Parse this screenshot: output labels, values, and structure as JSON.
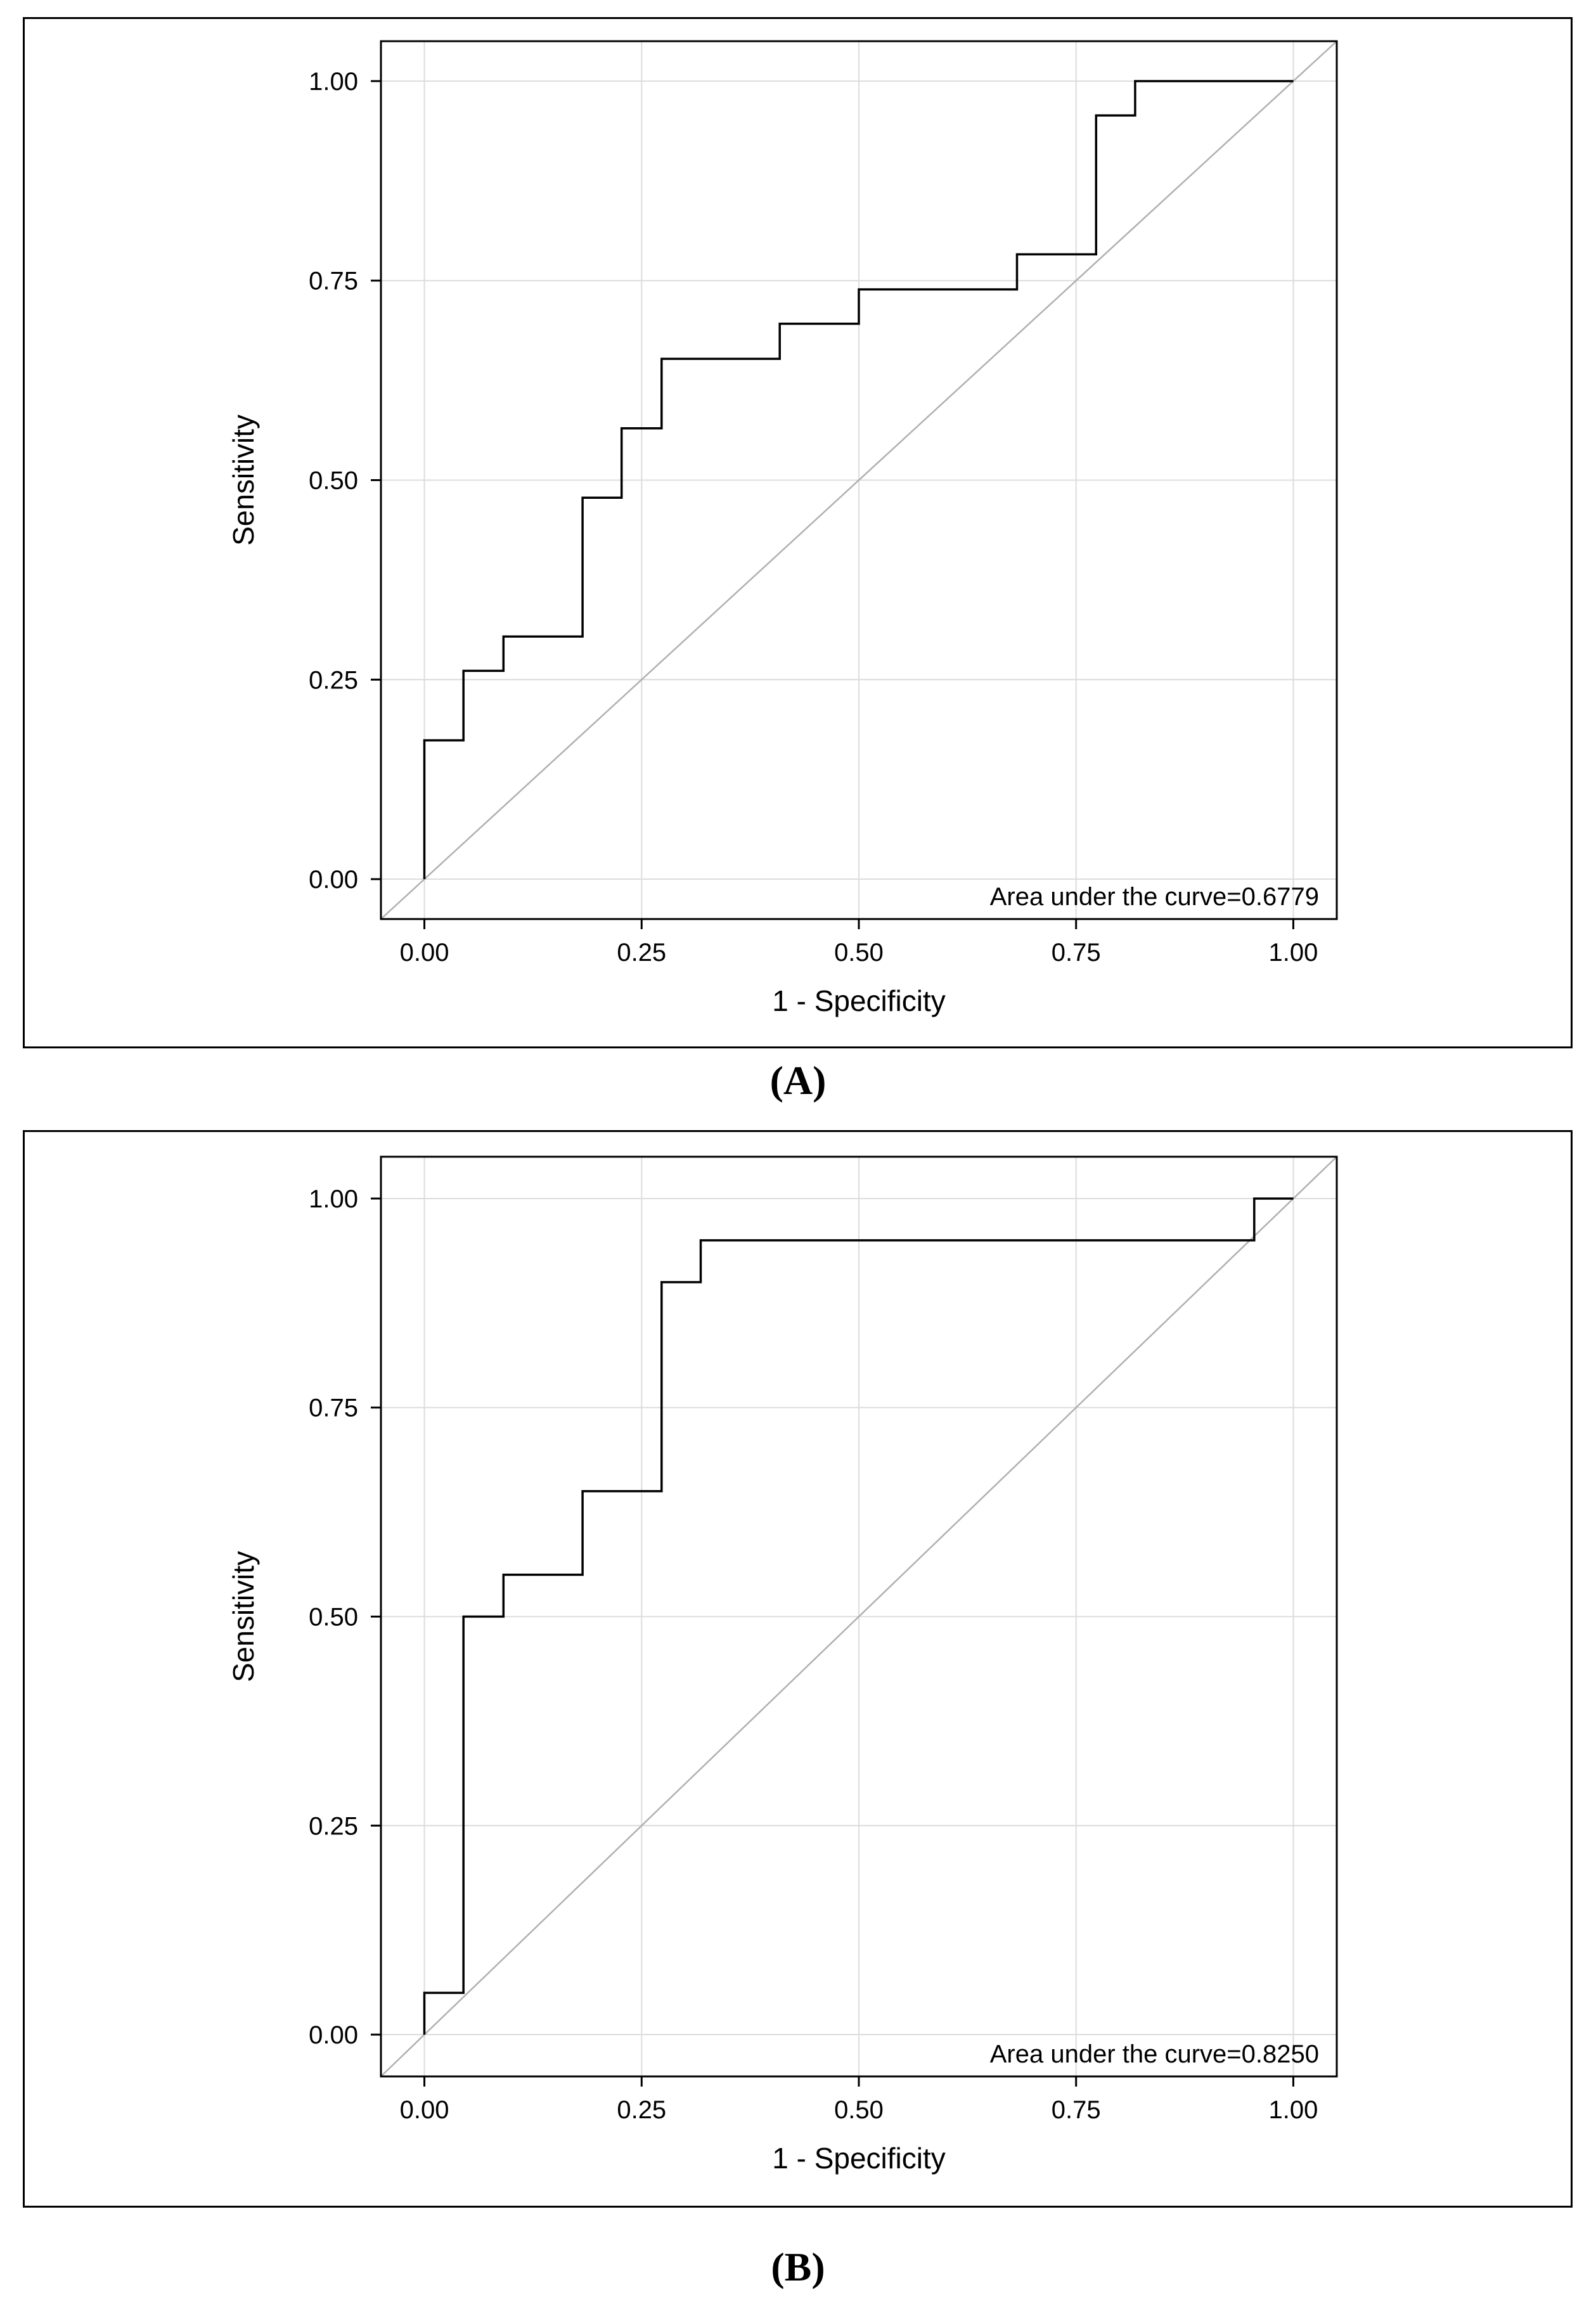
{
  "chart_data": [
    {
      "type": "line",
      "panel_label": "(A)",
      "xlabel": "1 - Specificity",
      "ylabel": "Sensitivity",
      "xlim": [
        -0.05,
        1.05
      ],
      "ylim": [
        -0.05,
        1.05
      ],
      "xticks": [
        "0.00",
        "0.25",
        "0.50",
        "0.75",
        "1.00"
      ],
      "yticks": [
        "0.00",
        "0.25",
        "0.50",
        "0.75",
        "1.00"
      ],
      "grid": true,
      "annotation": "Area under the curve=0.6779",
      "series": [
        {
          "name": "ROC curve",
          "x": [
            0,
            0,
            0.045,
            0.045,
            0.091,
            0.091,
            0.182,
            0.182,
            0.227,
            0.227,
            0.273,
            0.273,
            0.409,
            0.409,
            0.5,
            0.5,
            0.682,
            0.682,
            0.773,
            0.773,
            0.818,
            0.818,
            1
          ],
          "y": [
            0,
            0.174,
            0.174,
            0.261,
            0.261,
            0.304,
            0.304,
            0.478,
            0.478,
            0.565,
            0.565,
            0.652,
            0.652,
            0.696,
            0.696,
            0.739,
            0.739,
            0.783,
            0.783,
            0.957,
            0.957,
            1,
            1
          ]
        },
        {
          "name": "Reference line",
          "x": [
            -0.05,
            1.05
          ],
          "y": [
            -0.05,
            1.05
          ]
        }
      ]
    },
    {
      "type": "line",
      "panel_label": "(B)",
      "xlabel": "1 - Specificity",
      "ylabel": "Sensitivity",
      "xlim": [
        -0.05,
        1.05
      ],
      "ylim": [
        -0.05,
        1.05
      ],
      "xticks": [
        "0.00",
        "0.25",
        "0.50",
        "0.75",
        "1.00"
      ],
      "yticks": [
        "0.00",
        "0.25",
        "0.50",
        "0.75",
        "1.00"
      ],
      "grid": true,
      "annotation": "Area under the curve=0.8250",
      "series": [
        {
          "name": "ROC curve",
          "x": [
            0,
            0,
            0.045,
            0.045,
            0.091,
            0.091,
            0.182,
            0.182,
            0.273,
            0.273,
            0.318,
            0.318,
            0.955,
            0.955,
            1
          ],
          "y": [
            0,
            0.05,
            0.05,
            0.5,
            0.5,
            0.55,
            0.55,
            0.65,
            0.65,
            0.9,
            0.9,
            0.95,
            0.95,
            1,
            1
          ]
        },
        {
          "name": "Reference line",
          "x": [
            -0.05,
            1.05
          ],
          "y": [
            -0.05,
            1.05
          ]
        }
      ]
    }
  ]
}
